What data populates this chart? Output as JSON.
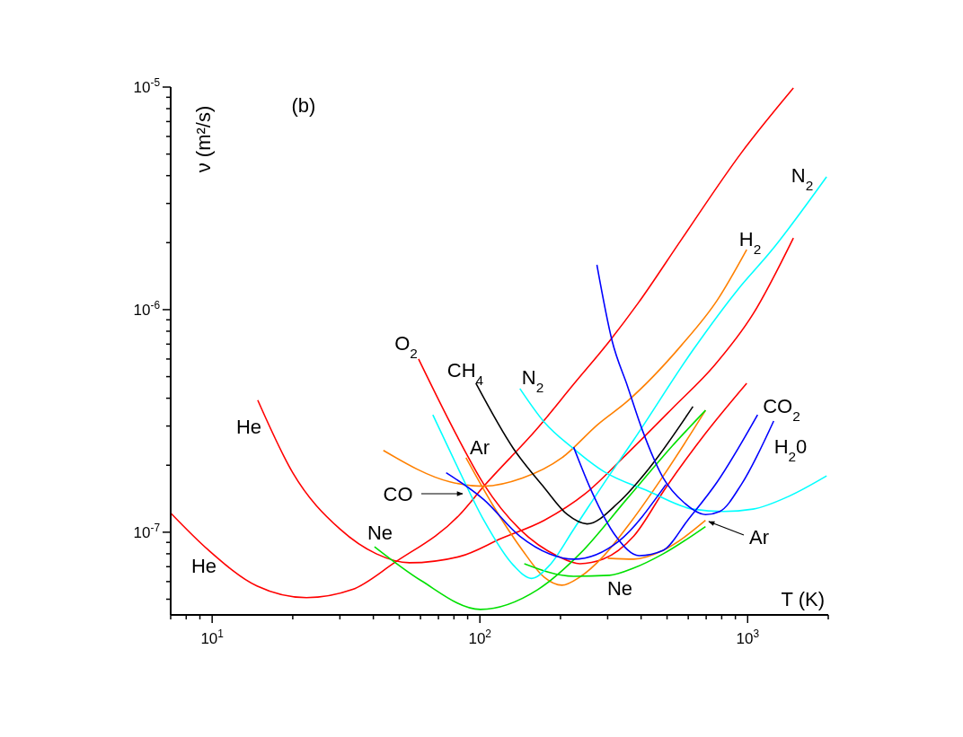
{
  "chart_data": {
    "type": "line",
    "title": "(b)",
    "xlabel": "T (K)",
    "ylabel": "ν (m²/s)",
    "log": "xy",
    "grid": false,
    "marker": "none",
    "line_style": "solid",
    "xlim": [
      7,
      2000
    ],
    "ylim": [
      4.25e-08,
      1e-05
    ],
    "xticks": [
      {
        "value": 7,
        "label": null
      },
      {
        "value": 8,
        "label": null
      },
      {
        "value": 9,
        "label": null
      },
      {
        "value": 10,
        "label": "10$^{1}$"
      },
      {
        "value": 20,
        "label": null
      },
      {
        "value": 30,
        "label": null
      },
      {
        "value": 40,
        "label": null
      },
      {
        "value": 50,
        "label": null
      },
      {
        "value": 60,
        "label": null
      },
      {
        "value": 70,
        "label": null
      },
      {
        "value": 80,
        "label": null
      },
      {
        "value": 90,
        "label": null
      },
      {
        "value": 100,
        "label": "10$^{2}$"
      },
      {
        "value": 200,
        "label": null
      },
      {
        "value": 300,
        "label": null
      },
      {
        "value": 400,
        "label": null
      },
      {
        "value": 500,
        "label": null
      },
      {
        "value": 600,
        "label": null
      },
      {
        "value": 700,
        "label": null
      },
      {
        "value": 800,
        "label": null
      },
      {
        "value": 900,
        "label": null
      },
      {
        "value": 1000,
        "label": "10$^{3}$"
      },
      {
        "value": 2000,
        "label": null
      }
    ],
    "yticks": [
      {
        "value": 5e-08,
        "label": null
      },
      {
        "value": 6e-08,
        "label": null
      },
      {
        "value": 7e-08,
        "label": null
      },
      {
        "value": 8e-08,
        "label": null
      },
      {
        "value": 9e-08,
        "label": null
      },
      {
        "value": 1e-07,
        "label": "10$^{-7}$"
      },
      {
        "value": 2e-07,
        "label": null
      },
      {
        "value": 3e-07,
        "label": null
      },
      {
        "value": 4e-07,
        "label": null
      },
      {
        "value": 5e-07,
        "label": null
      },
      {
        "value": 6e-07,
        "label": null
      },
      {
        "value": 7e-07,
        "label": null
      },
      {
        "value": 8e-07,
        "label": null
      },
      {
        "value": 9e-07,
        "label": null
      },
      {
        "value": 1e-06,
        "label": "10$^{-6}$"
      },
      {
        "value": 2e-06,
        "label": null
      },
      {
        "value": 3e-06,
        "label": null
      },
      {
        "value": 4e-06,
        "label": null
      },
      {
        "value": 5e-06,
        "label": null
      },
      {
        "value": 6e-06,
        "label": null
      },
      {
        "value": 7e-06,
        "label": null
      },
      {
        "value": 8e-06,
        "label": null
      },
      {
        "value": 9e-06,
        "label": null
      },
      {
        "value": 1e-05,
        "label": "10$^{-5}$"
      }
    ],
    "series": [
      {
        "color": "#ff0000",
        "x": [
          7.0,
          9.7,
          14.7,
          22.5,
          33.3,
          47.9,
          84.1,
          103.5,
          164.4,
          223.9,
          304.8,
          390,
          565,
          948,
          1482
        ],
        "values": [
          1.22e-07,
          8.3e-08,
          5.73e-08,
          5.08e-08,
          5.52e-08,
          7.29e-08,
          1.2e-07,
          1.61e-07,
          2.94e-07,
          4.62e-07,
          7.22e-07,
          1.07e-06,
          2.06e-06,
          5.07e-06,
          9.9e-06
        ]
      },
      {
        "color": "#ff0000",
        "x": [
          14.8,
          20.0,
          30.1,
          41.0,
          54.6,
          84.1,
          120.8,
          173.6,
          247.5,
          355.6,
          523.1,
          751.6,
          1047,
          1482
        ],
        "values": [
          3.92e-07,
          1.85e-07,
          1.03e-07,
          8e-08,
          7.29e-08,
          7.78e-08,
          9.4e-08,
          1.13e-07,
          1.49e-07,
          2.26e-07,
          3.6e-07,
          5.62e-07,
          9.55e-07,
          2.1e-06
        ]
      },
      {
        "color": "#ff0000",
        "x": [
          59.0,
          80.3,
          103.5,
          141,
          196.4,
          236.3,
          288.8,
          375.4,
          495.5,
          696,
          992
        ],
        "values": [
          6e-07,
          2.85e-07,
          1.64e-07,
          1.03e-07,
          7.78e-08,
          7.22e-08,
          7.57e-08,
          9.6e-08,
          1.59e-07,
          2.78e-07,
          4.67e-07
        ]
      },
      {
        "color": "#ff8000",
        "x": [
          43.6,
          77.8,
          103.5,
          144.2,
          202.5,
          275.7,
          355.6,
          565,
          769,
          992
        ],
        "values": [
          2.33e-07,
          1.68e-07,
          1.61e-07,
          1.75e-07,
          2.16e-07,
          3.05e-07,
          3.88e-07,
          6.9e-07,
          1.1e-06,
          1.86e-06
        ]
      },
      {
        "color": "#ff8000",
        "x": [
          88.7,
          111.9,
          144.2,
          173.6,
          202.5,
          236.3,
          288.8,
          355.6,
          484.2,
          696
        ],
        "values": [
          2.16e-07,
          1.32e-07,
          8.3e-08,
          6.29e-08,
          5.78e-08,
          6.29e-08,
          7.78e-08,
          1.06e-07,
          1.79e-07,
          3.53e-07
        ]
      },
      {
        "color": "#ff8000",
        "x": [
          300.2,
          375.4,
          484.2,
          696
        ],
        "values": [
          7.64e-08,
          7.57e-08,
          8.3e-08,
          1.13e-07
        ]
      },
      {
        "color": "#00e000",
        "x": [
          40.4,
          60.3,
          100.4,
          164.4,
          236.3,
          355.6,
          523.1,
          696
        ],
        "values": [
          8.6e-08,
          6.06e-08,
          4.5e-08,
          5.52e-08,
          8e-08,
          1.42e-07,
          2.44e-07,
          3.53e-07
        ]
      },
      {
        "color": "#00e000",
        "x": [
          146.5,
          223.9,
          304.8,
          375.4,
          484.2,
          696
        ],
        "values": [
          7.22e-08,
          6.34e-08,
          6.4e-08,
          6.9e-08,
          8e-08,
          1.06e-07
        ]
      },
      {
        "color": "#00ffff",
        "x": [
          66.7,
          80.3,
          103.5,
          133.6,
          155.8,
          181.8,
          223.9,
          288.8,
          375.4,
          624.6,
          918.7,
          1222,
          1972
        ],
        "values": [
          3.37e-07,
          2.1e-07,
          1.13e-07,
          7.09e-08,
          6.2e-08,
          7.09e-08,
          1.03e-07,
          1.64e-07,
          2.6e-07,
          6.58e-07,
          1.23e-06,
          1.83e-06,
          3.95e-06
        ]
      },
      {
        "color": "#00ffff",
        "x": [
          141,
          173.6,
          223.9,
          288.8,
          424.6,
          624.6,
          812,
          1047,
          1425,
          1972
        ],
        "values": [
          4.42e-07,
          3.13e-07,
          2.37e-07,
          1.88e-07,
          1.53e-07,
          1.27e-07,
          1.24e-07,
          1.27e-07,
          1.45e-07,
          1.79e-07
        ]
      },
      {
        "color": "#000000",
        "x": [
          96.6,
          133.6,
          173.6,
          212.2,
          251.3,
          329.4,
          424.6,
          624.6
        ],
        "values": [
          4.67e-07,
          2.37e-07,
          1.59e-07,
          1.2e-07,
          1.09e-07,
          1.36e-07,
          1.91e-07,
          3.67e-07
        ]
      },
      {
        "color": "#0000ff",
        "x": [
          74.8,
          103.5,
          141,
          181.8,
          223.9,
          329.4,
          495.5
        ],
        "values": [
          1.85e-07,
          1.4e-07,
          9.6e-08,
          8e-08,
          7.57e-08,
          9.1e-08,
          1.64e-07
        ]
      },
      {
        "color": "#0000ff",
        "x": [
          273.5,
          311.9,
          355.6,
          405.5,
          484.2,
          578,
          696,
          787,
          947.6,
          1251
        ],
        "values": [
          1.59e-06,
          7.22e-07,
          4.54e-07,
          2.85e-07,
          1.75e-07,
          1.36e-07,
          1.2e-07,
          1.24e-07,
          1.64e-07,
          3.16e-07
        ]
      },
      {
        "color": "#0000ff",
        "x": [
          223.9,
          261.2,
          321.8,
          393.2,
          484.2,
          596.6,
          769,
          1089
        ],
        "values": [
          2.41e-07,
          1.53e-07,
          9.6e-08,
          7.85e-08,
          8.3e-08,
          1.13e-07,
          1.68e-07,
          3.37e-07
        ]
      }
    ],
    "annotations": [
      "He",
      "He",
      "Ne",
      "CO",
      "Ar",
      "O$_{2}$",
      "CH$_{4}$",
      "N$_{2}$",
      "N$_{2}$",
      "H$_{2}$",
      "CO$_{2}$",
      "H$_{2}$0",
      "Ar",
      "Ne"
    ]
  }
}
